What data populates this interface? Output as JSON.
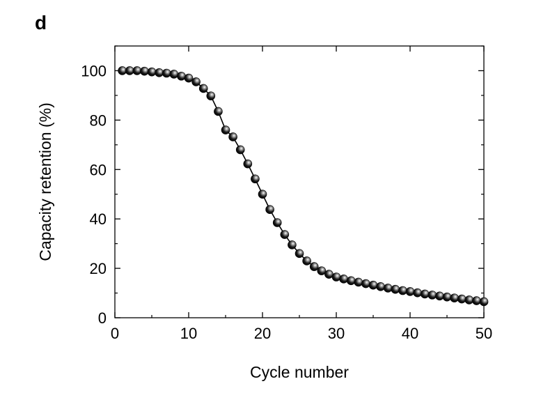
{
  "panel_label": "d",
  "chart_data": {
    "type": "line",
    "title": "",
    "xlabel": "Cycle number",
    "ylabel": "Capacity retention (%)",
    "xlim": [
      0,
      50
    ],
    "ylim": [
      0,
      110
    ],
    "xticks": [
      0,
      10,
      20,
      30,
      40,
      50
    ],
    "yticks": [
      0,
      20,
      40,
      60,
      80,
      100
    ],
    "grid": false,
    "marker": "sphere",
    "colors": {
      "marker": "#111111",
      "line": "#000000"
    },
    "series": [
      {
        "x": [
          1,
          2,
          3,
          4,
          5,
          6,
          7,
          8,
          9,
          10,
          11,
          12,
          13,
          14,
          15,
          16,
          17,
          18,
          19,
          20,
          21,
          22,
          23,
          24,
          25,
          26,
          27,
          28,
          29,
          30,
          31,
          32,
          33,
          34,
          35,
          36,
          37,
          38,
          39,
          40,
          41,
          42,
          43,
          44,
          45,
          46,
          47,
          48,
          49,
          50
        ],
        "y": [
          100,
          100,
          100,
          99.8,
          99.5,
          99.2,
          99,
          98.6,
          97.8,
          97,
          95.5,
          92.8,
          89.8,
          83.5,
          76,
          73.2,
          68,
          62.3,
          56.2,
          50,
          43.8,
          38.5,
          33.7,
          29.5,
          26,
          23,
          20.7,
          19,
          17.6,
          16.5,
          15.7,
          15,
          14.4,
          13.8,
          13.2,
          12.6,
          12,
          11.5,
          11,
          10.6,
          10.1,
          9.6,
          9.2,
          8.8,
          8.4,
          8,
          7.6,
          7.2,
          6.9,
          6.5
        ]
      }
    ]
  }
}
